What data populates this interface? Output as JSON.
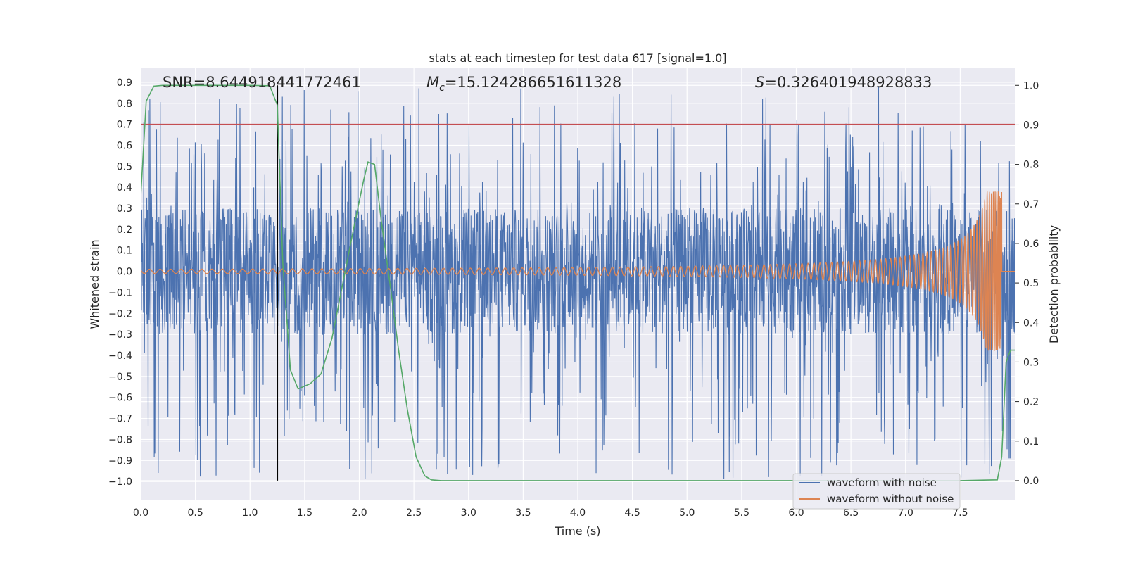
{
  "chart_data": {
    "type": "line",
    "title": "stats at each timestep for test data 617 [signal=1.0]",
    "xlabel": "Time (s)",
    "ylabel_left": "Whitened strain",
    "ylabel_right": "Detection probability",
    "xlim": [
      0.0,
      8.0
    ],
    "ylim_left": [
      -1.09,
      0.97
    ],
    "ylim_right": [
      -0.05,
      1.045
    ],
    "x_ticks": [
      "0.0",
      "0.5",
      "1.0",
      "1.5",
      "2.0",
      "2.5",
      "3.0",
      "3.5",
      "4.0",
      "4.5",
      "5.0",
      "5.5",
      "6.0",
      "6.5",
      "7.0",
      "7.5"
    ],
    "y_left_ticks": [
      "0.9",
      "0.8",
      "0.7",
      "0.6",
      "0.5",
      "0.4",
      "0.3",
      "0.2",
      "0.1",
      "0.0",
      "−0.1",
      "−0.2",
      "−0.3",
      "−0.4",
      "−0.5",
      "−0.6",
      "−0.7",
      "−0.8",
      "−0.9",
      "−1.0"
    ],
    "y_right_ticks": [
      "1.0",
      "0.9",
      "0.8",
      "0.7",
      "0.6",
      "0.5",
      "0.4",
      "0.3",
      "0.2",
      "0.1",
      "0.0"
    ],
    "grid": true,
    "legend_position": "lower-right",
    "annotations": {
      "snr": "SNR=8.644918441772461",
      "mc_symbol": "M",
      "mc_subscript": "c",
      "mc_value": "=15.124286651611328",
      "s_symbol": "S",
      "s_value": "=0.326401948928833"
    },
    "threshold": {
      "value": 0.7,
      "axis": "left",
      "color": "#c44e52"
    },
    "marker_time": 1.25,
    "noise_envelope": {
      "core_amplitude": 0.3,
      "peak_max": 0.88,
      "peak_min": -0.99
    },
    "series": [
      {
        "name": "waveform with noise",
        "color": "#4c72b0",
        "axis": "left",
        "x_range": [
          0.0,
          8.0
        ]
      },
      {
        "name": "waveform without noise",
        "color": "#dd8452",
        "axis": "left",
        "x_range": [
          0.0,
          8.0
        ],
        "merger_time": 7.88,
        "peak_amplitude": [
          0.38,
          -0.35
        ]
      },
      {
        "color": "#55a868",
        "axis": "right",
        "x": [
          0.0,
          0.05,
          0.12,
          0.2,
          0.4,
          0.6,
          0.8,
          1.0,
          1.18,
          1.25,
          1.3,
          1.37,
          1.44,
          1.55,
          1.65,
          1.75,
          1.85,
          1.95,
          2.04,
          2.08,
          2.14,
          2.2,
          2.28,
          2.36,
          2.44,
          2.52,
          2.6,
          2.66,
          2.75,
          3.0,
          3.5,
          4.0,
          5.0,
          6.0,
          7.0,
          7.5,
          7.84,
          7.88,
          7.92,
          7.96,
          8.0
        ],
        "y": [
          0.72,
          0.96,
          0.998,
          1.0,
          1.0,
          1.0,
          1.0,
          1.0,
          0.999,
          0.95,
          0.55,
          0.28,
          0.232,
          0.245,
          0.27,
          0.36,
          0.5,
          0.64,
          0.76,
          0.806,
          0.8,
          0.66,
          0.5,
          0.33,
          0.18,
          0.06,
          0.012,
          0.002,
          0.0,
          0.0,
          0.0,
          0.0,
          0.0,
          0.0,
          0.0,
          0.0,
          0.002,
          0.06,
          0.3,
          0.33,
          0.33
        ]
      }
    ]
  }
}
